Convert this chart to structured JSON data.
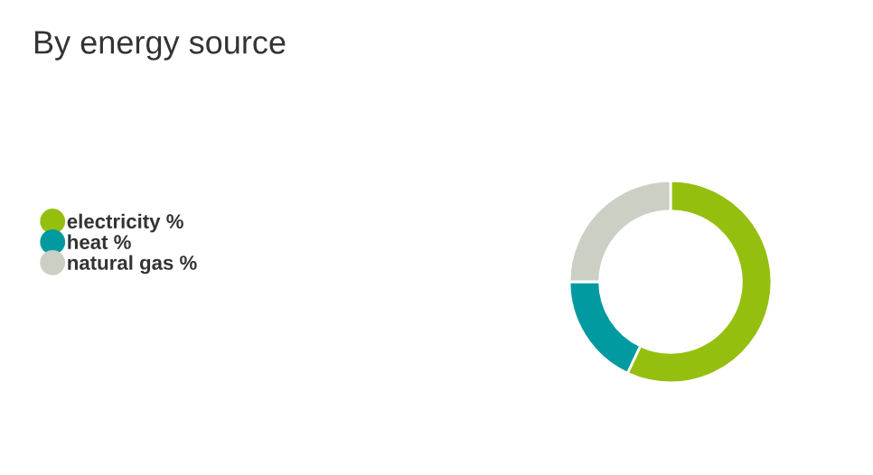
{
  "chart_data": {
    "type": "donut",
    "title": "By energy source",
    "categories": [
      "electricity %",
      "heat %",
      "natural gas %"
    ],
    "values": [
      57,
      18,
      25
    ],
    "colors": [
      "#95bf0f",
      "#009aa0",
      "#cccfc3"
    ],
    "legend": "left"
  }
}
